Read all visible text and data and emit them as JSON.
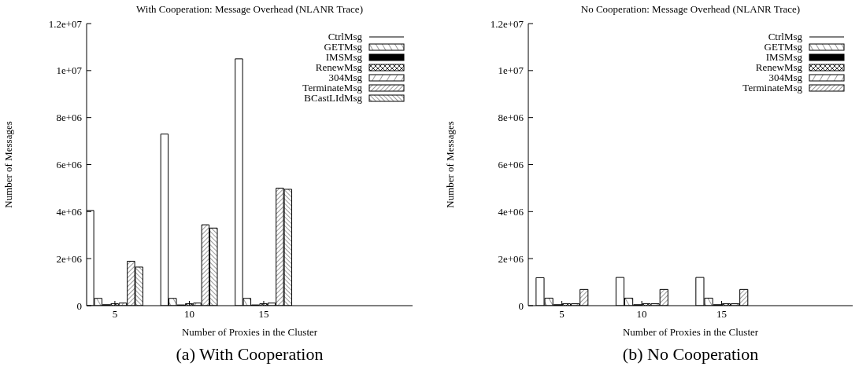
{
  "chart_data": [
    {
      "type": "bar",
      "title": "With Cooperation: Message Overhead (NLANR Trace)",
      "xlabel": "Number of Proxies in the Cluster",
      "ylabel": "Number of Messages",
      "annotations": [
        "(a) With Cooperation"
      ],
      "x": [
        5,
        10,
        15
      ],
      "xlim": [
        3.1,
        25
      ],
      "xticks": [
        5,
        10,
        15
      ],
      "ylim": [
        0,
        12000000
      ],
      "yticks": [
        0,
        {
          "value": 2000000,
          "label": "2e+06"
        },
        {
          "value": 4000000,
          "label": "4e+06"
        },
        {
          "value": 6000000,
          "label": "6e+06"
        },
        {
          "value": 8000000,
          "label": "8e+06"
        },
        {
          "value": 10000000,
          "label": "1e+07"
        },
        {
          "value": 12000000,
          "label": "1.2e+07"
        }
      ],
      "legend": "top right",
      "grid": false,
      "series": [
        {
          "name": "CtrlMsg",
          "color": "#ffffff",
          "values": [
            4050000,
            7300000,
            10500000
          ]
        },
        {
          "name": "GETMsg",
          "color": "#000000",
          "values": [
            310000,
            310000,
            310000
          ]
        },
        {
          "name": "IMSMsg",
          "color": "#000000",
          "values": [
            40000,
            30000,
            30000
          ]
        },
        {
          "name": "RenewMsg",
          "color": "#000000",
          "values": [
            80000,
            80000,
            80000
          ]
        },
        {
          "name": "304Msg",
          "color": "#000000",
          "values": [
            110000,
            110000,
            110000
          ]
        },
        {
          "name": "TerminateMsg",
          "color": "#000000",
          "values": [
            1890000,
            3440000,
            5000000
          ]
        },
        {
          "name": "BCastLIdMsg",
          "color": "#000000",
          "values": [
            1640000,
            3300000,
            4950000
          ]
        }
      ]
    },
    {
      "type": "bar",
      "title": "No Cooperation: Message Overhead (NLANR Trace)",
      "xlabel": "Number of Proxies in the Cluster",
      "ylabel": "Number of Messages",
      "annotations": [
        "(b) No Cooperation"
      ],
      "x": [
        5,
        10,
        15
      ],
      "xlim": [
        2.9,
        23.2
      ],
      "xticks": [
        5,
        10,
        15
      ],
      "ylim": [
        0,
        12000000
      ],
      "yticks": [
        0,
        {
          "value": 2000000,
          "label": "2e+06"
        },
        {
          "value": 4000000,
          "label": "4e+06"
        },
        {
          "value": 6000000,
          "label": "6e+06"
        },
        {
          "value": 8000000,
          "label": "8e+06"
        },
        {
          "value": 10000000,
          "label": "1e+07"
        },
        {
          "value": 12000000,
          "label": "1.2e+07"
        }
      ],
      "legend": "top right",
      "grid": false,
      "series": [
        {
          "name": "CtrlMsg",
          "color": "#ffffff",
          "values": [
            1190000,
            1200000,
            1200000
          ]
        },
        {
          "name": "GETMsg",
          "color": "#000000",
          "values": [
            320000,
            320000,
            320000
          ]
        },
        {
          "name": "IMSMsg",
          "color": "#000000",
          "values": [
            40000,
            40000,
            40000
          ]
        },
        {
          "name": "RenewMsg",
          "color": "#000000",
          "values": [
            80000,
            80000,
            80000
          ]
        },
        {
          "name": "304Msg",
          "color": "#000000",
          "values": [
            80000,
            80000,
            80000
          ]
        },
        {
          "name": "TerminateMsg",
          "color": "#000000",
          "values": [
            690000,
            690000,
            690000
          ]
        }
      ]
    }
  ]
}
